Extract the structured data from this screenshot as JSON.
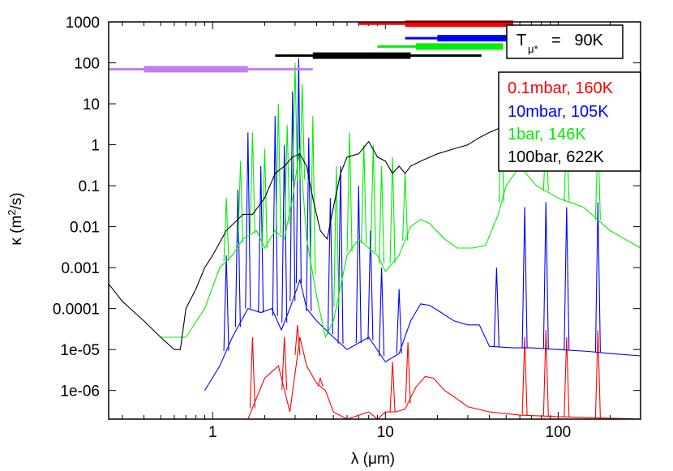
{
  "chart_data": {
    "type": "line",
    "x_scale": "log",
    "y_scale": "log",
    "xlabel": "λ (μm)",
    "ylabel_main": "κ (m",
    "ylabel_sup": "2",
    "ylabel_tail": "/s)",
    "xlim": [
      0.25,
      300
    ],
    "ylim": [
      2e-07,
      1000
    ],
    "x_ticks": [
      {
        "value": 1,
        "label": "1"
      },
      {
        "value": 10,
        "label": "10"
      },
      {
        "value": 100,
        "label": "100"
      }
    ],
    "y_ticks": [
      {
        "value": 1e-06,
        "label": "1e-06"
      },
      {
        "value": 1e-05,
        "label": "1e-05"
      },
      {
        "value": 0.0001,
        "label": "0.0001"
      },
      {
        "value": 0.001,
        "label": "0.001"
      },
      {
        "value": 0.01,
        "label": "0.01"
      },
      {
        "value": 0.1,
        "label": "0.1"
      },
      {
        "value": 1,
        "label": "1"
      },
      {
        "value": 10,
        "label": "10"
      },
      {
        "value": 100,
        "label": "100"
      },
      {
        "value": 1000,
        "label": "1000"
      }
    ],
    "annotation": {
      "T_main": "T",
      "T_sub": "μ*",
      "T_value": "=   90K"
    },
    "colors": {
      "red": "#ff0000",
      "blue": "#0000ff",
      "green": "#00ee00",
      "black": "#000000",
      "purple": "#c080f0"
    },
    "series": [
      {
        "name": "0.1mbar, 160K",
        "color": "#ff0000",
        "points": [
          [
            1.6,
            2e-07
          ],
          [
            2.0,
            2e-06
          ],
          [
            2.4,
            4e-06
          ],
          [
            2.8,
            3e-07
          ],
          [
            3.2,
            2e-05
          ],
          [
            3.5,
            4e-06
          ],
          [
            4.0,
            1.5e-06
          ],
          [
            4.5,
            1e-06
          ],
          [
            5.0,
            3e-07
          ],
          [
            6.0,
            2e-07
          ],
          [
            8.0,
            3e-07
          ],
          [
            9.0,
            2e-07
          ],
          [
            10.0,
            3e-07
          ],
          [
            11.5,
            3e-07
          ],
          [
            13.0,
            3.5e-07
          ],
          [
            15.0,
            1.2e-06
          ],
          [
            17.0,
            2.2e-06
          ],
          [
            19.0,
            2e-06
          ],
          [
            22.0,
            1e-06
          ],
          [
            25.0,
            7e-07
          ],
          [
            30.0,
            4e-07
          ],
          [
            40.0,
            3e-07
          ],
          [
            60.0,
            2.5e-07
          ],
          [
            100.0,
            2.3e-07
          ],
          [
            200.0,
            2.1e-07
          ],
          [
            300.0,
            2e-07
          ]
        ],
        "spikes": [
          [
            1.7,
            2e-05
          ],
          [
            2.6,
            2e-05
          ],
          [
            3.1,
            4e-05
          ],
          [
            4.2,
            2e-06
          ],
          [
            11.0,
            5e-06
          ],
          [
            13.5,
            1.5e-05
          ],
          [
            64.0,
            2e-05
          ],
          [
            85.0,
            3e-05
          ],
          [
            112.0,
            2e-05
          ],
          [
            170.0,
            3e-05
          ]
        ]
      },
      {
        "name": "10mbar, 105K",
        "color": "#0000ff",
        "points": [
          [
            0.9,
            1e-06
          ],
          [
            1.1,
            4e-06
          ],
          [
            1.3,
            2e-05
          ],
          [
            1.6,
            0.0001
          ],
          [
            1.9,
            8e-05
          ],
          [
            2.2,
            0.0001
          ],
          [
            2.5,
            3e-05
          ],
          [
            2.8,
            0.0001
          ],
          [
            3.2,
            0.0005
          ],
          [
            3.5,
            0.0001
          ],
          [
            4.0,
            5e-05
          ],
          [
            5.0,
            2e-05
          ],
          [
            6.0,
            1e-05
          ],
          [
            8.0,
            2e-05
          ],
          [
            10.0,
            5e-06
          ],
          [
            12.0,
            8e-06
          ],
          [
            14.0,
            5e-05
          ],
          [
            16.0,
            0.00013
          ],
          [
            18.0,
            0.00012
          ],
          [
            21.0,
            8e-05
          ],
          [
            25.0,
            5e-05
          ],
          [
            30.0,
            4e-05
          ],
          [
            35.0,
            4e-05
          ],
          [
            40.0,
            1.2e-05
          ],
          [
            55.0,
            1.1e-05
          ],
          [
            70.0,
            1.1e-05
          ],
          [
            100.0,
            1e-05
          ],
          [
            150.0,
            9e-06
          ],
          [
            200.0,
            8e-06
          ],
          [
            300.0,
            7e-06
          ]
        ],
        "spikes": [
          [
            1.2,
            0.002
          ],
          [
            1.4,
            0.08
          ],
          [
            1.6,
            2.0
          ],
          [
            1.9,
            0.3
          ],
          [
            2.3,
            5.0
          ],
          [
            2.6,
            1.0
          ],
          [
            2.9,
            20
          ],
          [
            3.15,
            130
          ],
          [
            3.6,
            1.5
          ],
          [
            4.8,
            0.05
          ],
          [
            5.5,
            0.3
          ],
          [
            7.0,
            0.1
          ],
          [
            8.2,
            0.008
          ],
          [
            9.5,
            0.001
          ],
          [
            12.0,
            0.0003
          ],
          [
            44.0,
            0.001
          ],
          [
            64.0,
            0.03
          ],
          [
            85.0,
            0.04
          ],
          [
            112.0,
            0.03
          ],
          [
            170.0,
            0.04
          ]
        ]
      },
      {
        "name": "1bar, 146K",
        "color": "#00ee00",
        "points": [
          [
            0.5,
            2e-05
          ],
          [
            0.7,
            2e-05
          ],
          [
            0.9,
            0.0001
          ],
          [
            1.1,
            0.001
          ],
          [
            1.3,
            0.002
          ],
          [
            1.5,
            0.005
          ],
          [
            1.8,
            0.008
          ],
          [
            2.0,
            0.003
          ],
          [
            2.3,
            0.008
          ],
          [
            2.6,
            0.005
          ],
          [
            2.9,
            0.05
          ],
          [
            3.2,
            0.8
          ],
          [
            3.5,
            0.005
          ],
          [
            4.0,
            0.0002
          ],
          [
            4.5,
            2e-05
          ],
          [
            5.0,
            5e-05
          ],
          [
            6.0,
            0.002
          ],
          [
            7.0,
            0.005
          ],
          [
            8.0,
            0.003
          ],
          [
            9.0,
            0.002
          ],
          [
            10.0,
            0.0008
          ],
          [
            12.0,
            0.002
          ],
          [
            14.0,
            0.01
          ],
          [
            16.0,
            0.015
          ],
          [
            18.0,
            0.012
          ],
          [
            22.0,
            0.005
          ],
          [
            26.0,
            0.003
          ],
          [
            32.0,
            0.003
          ],
          [
            38.0,
            0.0035
          ],
          [
            45.0,
            0.02
          ],
          [
            50.0,
            0.1
          ],
          [
            60.0,
            0.3
          ],
          [
            75.0,
            0.1
          ],
          [
            100.0,
            0.05
          ],
          [
            140.0,
            0.03
          ],
          [
            200.0,
            0.008
          ],
          [
            300.0,
            0.003
          ]
        ],
        "spikes": [
          [
            1.2,
            0.05
          ],
          [
            1.45,
            0.4
          ],
          [
            1.7,
            2.0
          ],
          [
            2.0,
            0.8
          ],
          [
            2.4,
            10
          ],
          [
            2.7,
            3.0
          ],
          [
            3.0,
            100
          ],
          [
            3.3,
            30
          ],
          [
            3.8,
            5
          ],
          [
            5.2,
            0.3
          ],
          [
            6.2,
            2.0
          ],
          [
            7.5,
            1.0
          ],
          [
            8.5,
            1.0
          ],
          [
            9.5,
            0.3
          ],
          [
            11.0,
            0.5
          ],
          [
            13.0,
            0.2
          ],
          [
            47.0,
            3.0
          ],
          [
            64.0,
            2.0
          ],
          [
            85.0,
            2.0
          ],
          [
            112.0,
            2.0
          ],
          [
            170.0,
            2.0
          ]
        ]
      },
      {
        "name": "100bar, 622K",
        "color": "#000000",
        "points": [
          [
            0.25,
            0.0004
          ],
          [
            0.3,
            0.00015
          ],
          [
            0.4,
            5e-05
          ],
          [
            0.5,
            2e-05
          ],
          [
            0.6,
            1e-05
          ],
          [
            0.65,
            1e-05
          ],
          [
            0.7,
            0.0001
          ],
          [
            0.8,
            0.0003
          ],
          [
            0.9,
            0.001
          ],
          [
            1.0,
            0.002
          ],
          [
            1.2,
            0.008
          ],
          [
            1.5,
            0.02
          ],
          [
            1.7,
            0.02
          ],
          [
            2.0,
            0.05
          ],
          [
            2.3,
            0.2
          ],
          [
            2.6,
            0.3
          ],
          [
            2.9,
            0.5
          ],
          [
            3.2,
            0.6
          ],
          [
            3.5,
            0.3
          ],
          [
            3.8,
            0.05
          ],
          [
            4.2,
            0.008
          ],
          [
            4.6,
            0.005
          ],
          [
            5.0,
            0.03
          ],
          [
            5.5,
            0.2
          ],
          [
            6.0,
            0.5
          ],
          [
            7.0,
            0.6
          ],
          [
            8.0,
            1.2
          ],
          [
            9.0,
            0.5
          ],
          [
            10.0,
            0.4
          ],
          [
            11.0,
            0.2
          ],
          [
            12.0,
            0.3
          ],
          [
            13.0,
            0.2
          ],
          [
            14.0,
            0.3
          ],
          [
            16.0,
            0.4
          ],
          [
            20.0,
            0.6
          ],
          [
            25.0,
            0.8
          ],
          [
            30.0,
            1.0
          ],
          [
            35.0,
            1.5
          ],
          [
            40.0,
            2.0
          ],
          [
            50.0,
            3.0
          ],
          [
            60.0,
            2.0
          ],
          [
            80.0,
            4.0
          ],
          [
            100.0,
            5.0
          ],
          [
            150.0,
            4.0
          ],
          [
            200.0,
            5.0
          ],
          [
            300.0,
            3.0
          ]
        ],
        "spikes": []
      }
    ],
    "bars": [
      {
        "color": "#c080f0",
        "thin": [
          0.25,
          3.8
        ],
        "thick": [
          0.4,
          1.6
        ],
        "level": 70
      },
      {
        "color": "#ff0000",
        "thin": [
          7.0,
          55.0
        ],
        "thick": [
          13.0,
          55.0
        ],
        "level": 900
      },
      {
        "color": "#0000ff",
        "thin": [
          13.0,
          55.0
        ],
        "thick": [
          20.0,
          55.0
        ],
        "level": 400
      },
      {
        "color": "#00ee00",
        "thin": [
          9.0,
          48.0
        ],
        "thick": [
          15.0,
          48.0
        ],
        "level": 250
      },
      {
        "color": "#000000",
        "thin": [
          2.3,
          36.0
        ],
        "thick": [
          3.8,
          14.0
        ],
        "level": 150
      }
    ]
  }
}
